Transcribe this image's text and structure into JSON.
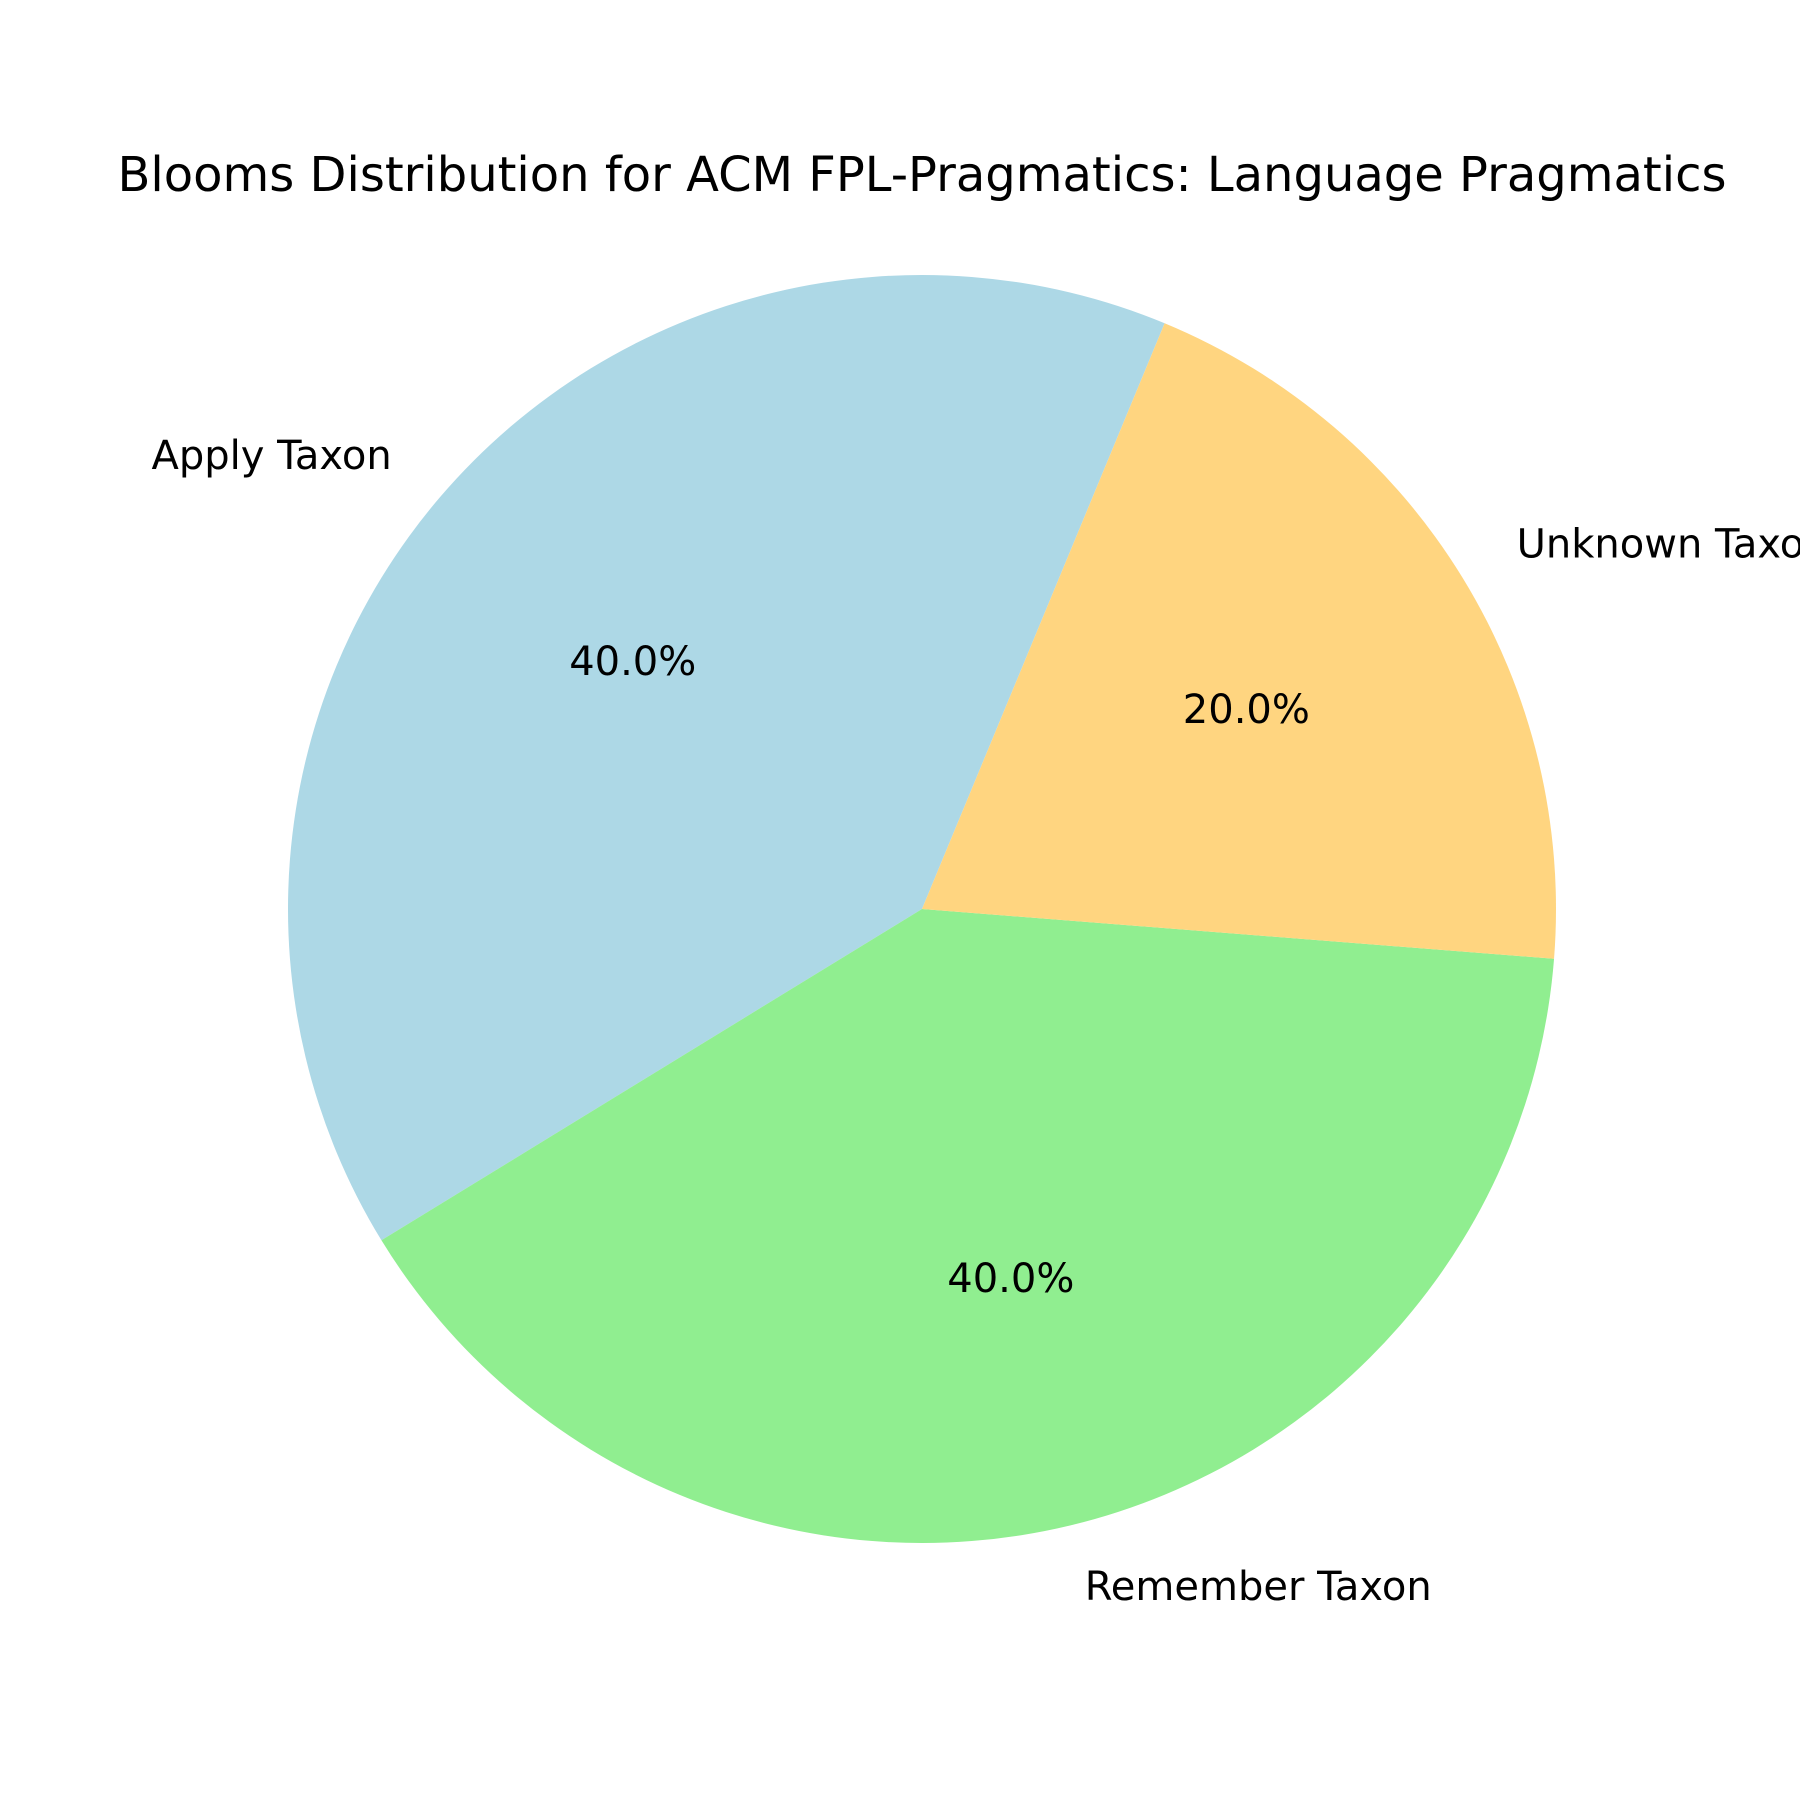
{
  "chart_data": {
    "type": "pie",
    "title": "Blooms Distribution for ACM FPL-Pragmatics: Language Pragmatics",
    "slices": [
      {
        "label": "Apply Taxon",
        "value": 40.0,
        "pct_label": "40.0%",
        "color": "#ADD8E6"
      },
      {
        "label": "Remember Taxon",
        "value": 40.0,
        "pct_label": "40.0%",
        "color": "#90EE90"
      },
      {
        "label": "Unknown Taxon",
        "value": 20.0,
        "pct_label": "20.0%",
        "color": "#FFD580"
      }
    ],
    "start_angle_deg": 67.5,
    "direction": "counterclockwise"
  }
}
